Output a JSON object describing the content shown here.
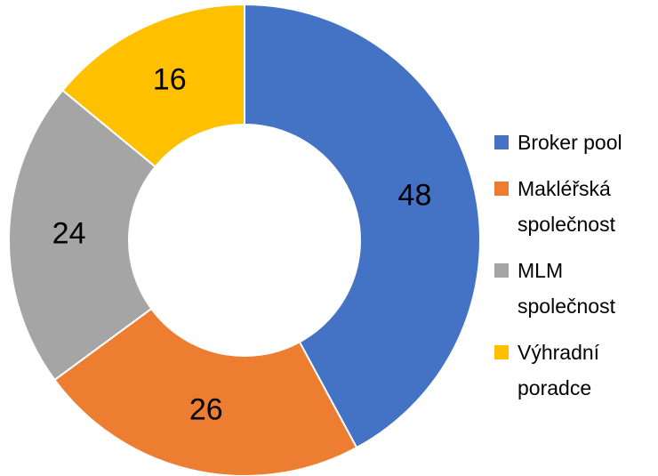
{
  "chart_data": {
    "type": "donut",
    "categories": [
      "Broker pool",
      "Makléřská společnost",
      "MLM společnost",
      "Výhradní poradce"
    ],
    "values": [
      48,
      26,
      24,
      16
    ],
    "colors": [
      "#4472c4",
      "#ed7d31",
      "#a5a5a5",
      "#ffc000"
    ],
    "legend": "right"
  }
}
